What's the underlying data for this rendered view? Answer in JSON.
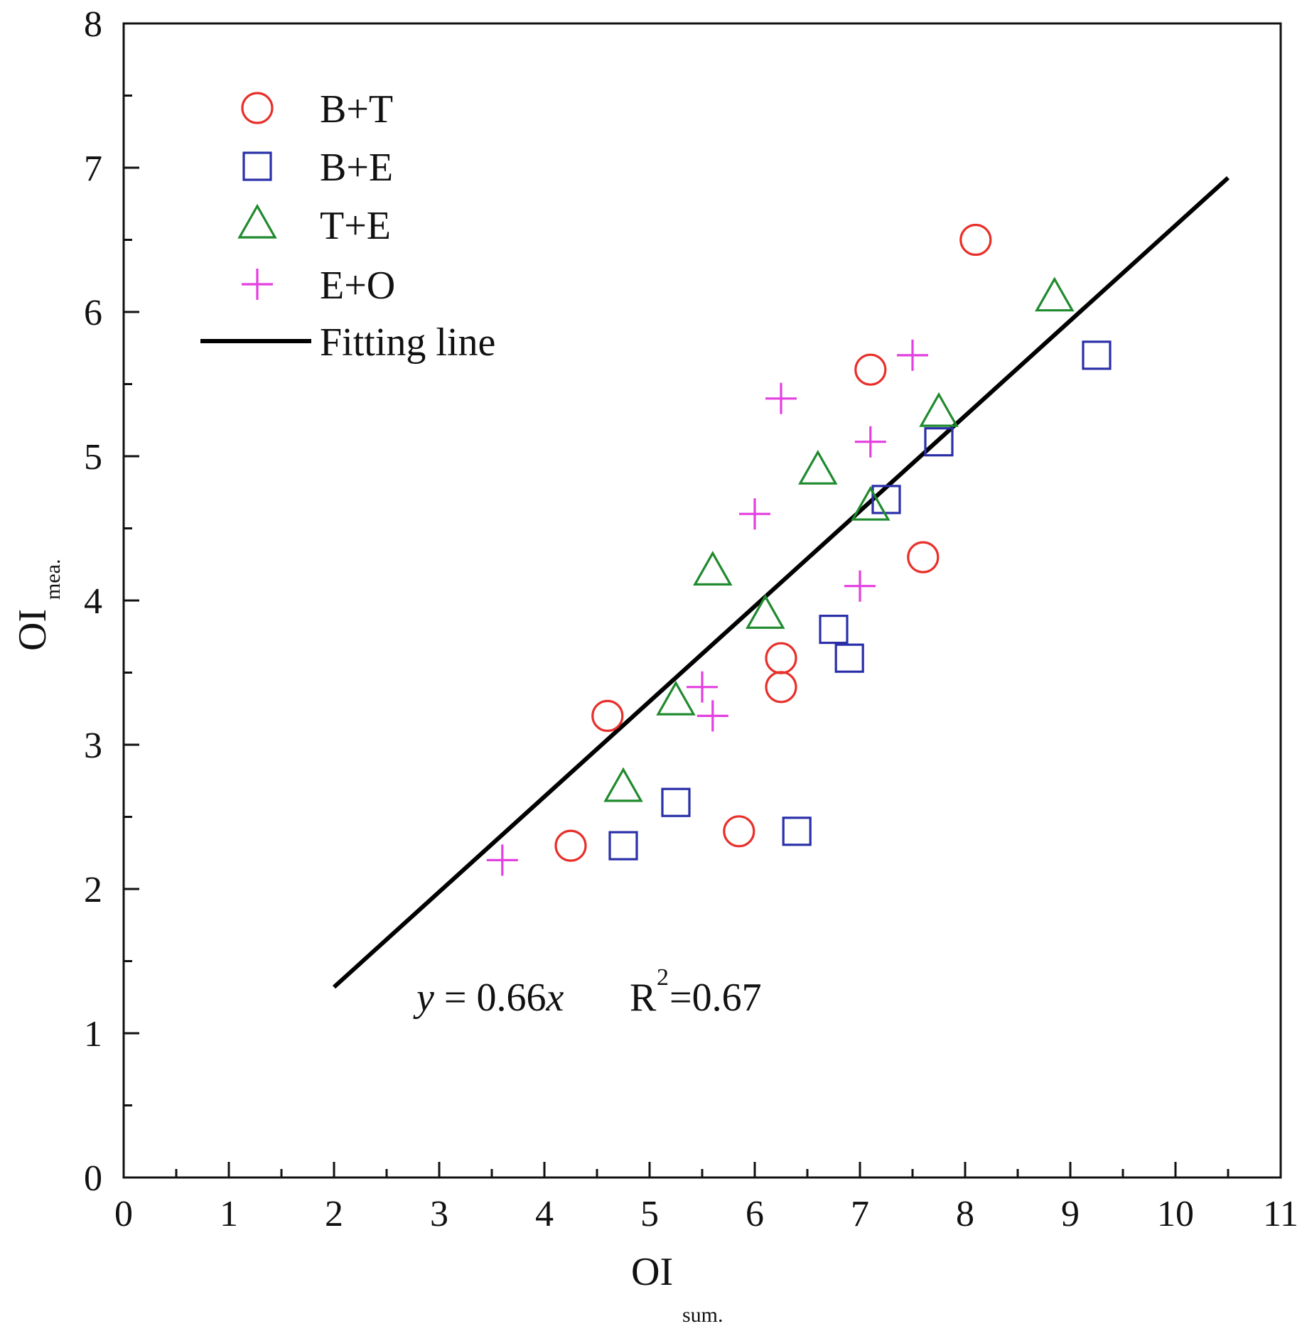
{
  "chart_data": {
    "type": "scatter",
    "xlabel": "OI",
    "xlabel_sub": "sum.",
    "ylabel": "OI",
    "ylabel_sub": "mea.",
    "xlim": [
      0,
      11
    ],
    "ylim": [
      0,
      8
    ],
    "xticks": [
      0,
      1,
      2,
      3,
      4,
      5,
      6,
      7,
      8,
      9,
      10,
      11
    ],
    "yticks": [
      0,
      1,
      2,
      3,
      4,
      5,
      6,
      7,
      8
    ],
    "grid": false,
    "legend_position": "top-left",
    "series": [
      {
        "name": "B+T",
        "marker": "circle",
        "color": "#e8302a",
        "x": [
          8.1,
          7.1,
          7.6,
          6.25,
          6.25,
          4.6,
          4.25,
          5.85
        ],
        "y": [
          6.5,
          5.6,
          4.3,
          3.6,
          3.4,
          3.2,
          2.3,
          2.4
        ]
      },
      {
        "name": "B+E",
        "marker": "square",
        "color": "#2a2fa8",
        "x": [
          9.25,
          7.75,
          7.25,
          6.75,
          6.9,
          5.25,
          4.75,
          6.4
        ],
        "y": [
          5.7,
          5.1,
          4.7,
          3.8,
          3.6,
          2.6,
          2.3,
          2.4
        ]
      },
      {
        "name": "T+E",
        "marker": "triangle",
        "color": "#1f8a2e",
        "x": [
          8.85,
          7.75,
          6.6,
          7.1,
          5.6,
          6.1,
          5.25,
          4.75
        ],
        "y": [
          6.1,
          5.3,
          4.9,
          4.65,
          4.2,
          3.9,
          3.3,
          2.7
        ]
      },
      {
        "name": "E+O",
        "marker": "plus",
        "color": "#e43fe0",
        "x": [
          7.5,
          6.25,
          7.1,
          6.0,
          7.0,
          5.5,
          5.6,
          3.6
        ],
        "y": [
          5.7,
          5.4,
          5.1,
          4.6,
          4.1,
          3.4,
          3.2,
          2.2
        ]
      }
    ],
    "fit": {
      "name": "Fitting line",
      "color": "#000000",
      "slope": 0.66,
      "x_range": [
        2.0,
        10.5
      ],
      "y_range": [
        1.32,
        6.93
      ]
    },
    "annotation": {
      "var": "y",
      "equation": " = 0.66",
      "xvar": "x",
      "r_label": "R",
      "r_exp": "2",
      "r_value": "=0.67"
    }
  }
}
